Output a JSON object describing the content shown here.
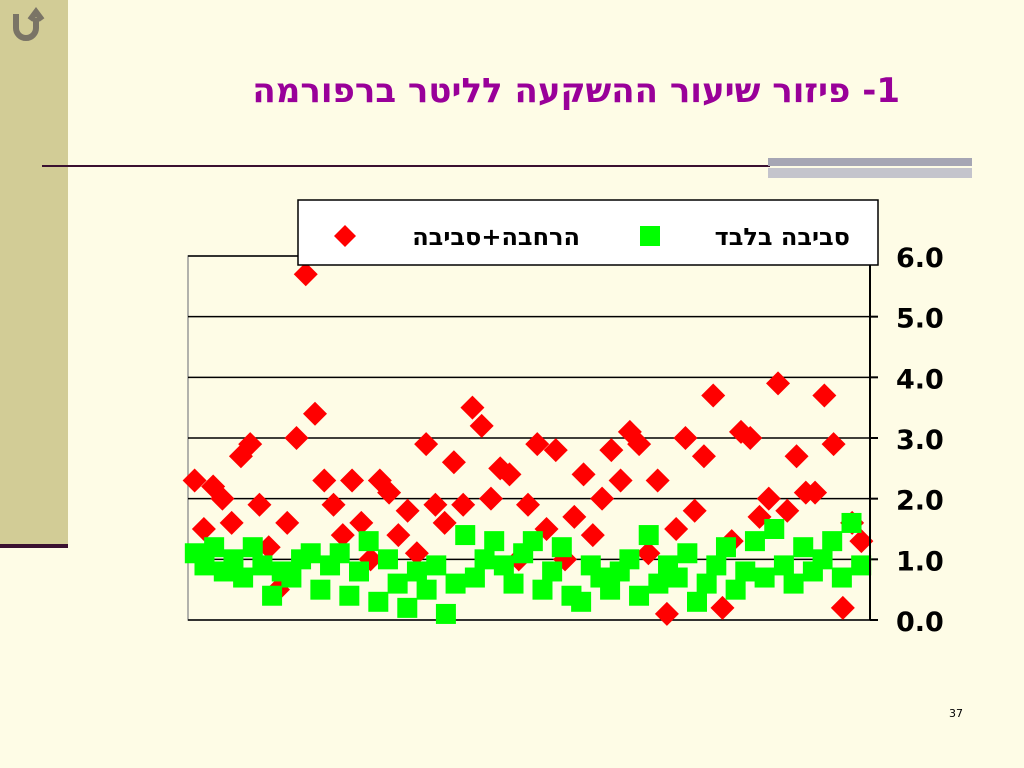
{
  "slide_title": "1- פיזור שיעור ההשקעה לליטר ברפורמה",
  "page_number": "37",
  "chart_data": {
    "type": "scatter",
    "ylim": [
      0,
      6
    ],
    "yticks": [
      {
        "value": 0,
        "label": "0.0"
      },
      {
        "value": 1,
        "label": "1.0"
      },
      {
        "value": 2,
        "label": "2.0"
      },
      {
        "value": 3,
        "label": "3.0"
      },
      {
        "value": 4,
        "label": "4.0"
      },
      {
        "value": 5,
        "label": "5.0"
      },
      {
        "value": 6,
        "label": "6.0"
      }
    ],
    "grid": true,
    "series": [
      {
        "name": "הרחבה+סביבה",
        "color": "#ff0000",
        "marker": "diamond",
        "values": [
          2.3,
          1.5,
          2.2,
          2.0,
          1.6,
          2.7,
          2.9,
          1.9,
          1.2,
          0.5,
          1.6,
          3.0,
          5.7,
          3.4,
          2.3,
          1.9,
          1.4,
          2.3,
          1.6,
          1.0,
          2.3,
          2.1,
          1.4,
          1.8,
          1.1,
          2.9,
          1.9,
          1.6,
          2.6,
          1.9,
          3.5,
          3.2,
          2.0,
          2.5,
          2.4,
          1.0,
          1.9,
          2.9,
          1.5,
          2.8,
          1.0,
          1.7,
          2.4,
          1.4,
          2.0,
          2.8,
          2.3,
          3.1,
          2.9,
          1.1,
          2.3,
          0.1,
          1.5,
          3.0,
          1.8,
          2.7,
          3.7,
          0.2,
          1.3,
          3.1,
          3.0,
          1.7,
          2.0,
          3.9,
          1.8,
          2.7,
          2.1,
          2.1,
          3.7,
          2.9,
          0.2,
          1.6,
          1.3
        ]
      },
      {
        "name": "סביבה בלבד",
        "color": "#00ff00",
        "marker": "square",
        "values": [
          1.1,
          0.9,
          1.2,
          0.8,
          1.0,
          0.7,
          1.2,
          0.9,
          0.4,
          0.8,
          0.7,
          1.0,
          1.1,
          0.5,
          0.9,
          1.1,
          0.4,
          0.8,
          1.3,
          0.3,
          1.0,
          0.6,
          0.2,
          0.8,
          0.5,
          0.9,
          0.1,
          0.6,
          1.4,
          0.7,
          1.0,
          1.3,
          0.9,
          0.6,
          1.1,
          1.3,
          0.5,
          0.8,
          1.2,
          0.4,
          0.3,
          0.9,
          0.7,
          0.5,
          0.8,
          1.0,
          0.4,
          1.4,
          0.6,
          0.9,
          0.7,
          1.1,
          0.3,
          0.6,
          0.9,
          1.2,
          0.5,
          0.8,
          1.3,
          0.7,
          1.5,
          0.9,
          0.6,
          1.2,
          0.8,
          1.0,
          1.3,
          0.7,
          1.6,
          0.9
        ]
      }
    ]
  }
}
